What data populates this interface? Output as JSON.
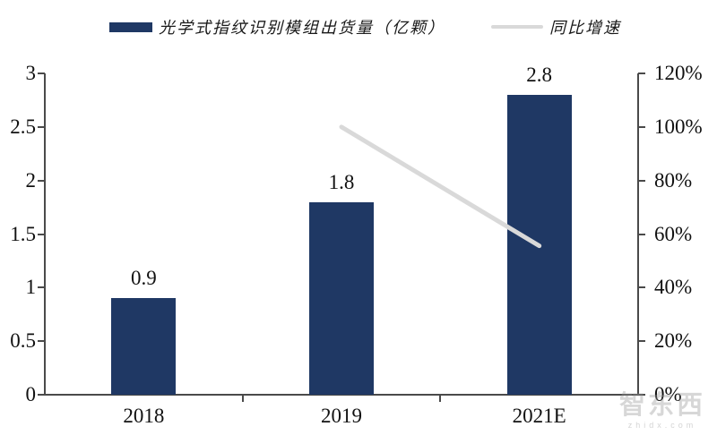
{
  "legend": {
    "items": [
      {
        "label": "光学式指纹识别模组出货量（亿颗）",
        "type": "bar-swatch",
        "color": "#1f3864"
      },
      {
        "label": "同比增速",
        "type": "line-swatch",
        "color": "#d9d9d9"
      }
    ]
  },
  "watermark": {
    "text": "智东西",
    "subtext": "zhidx.com"
  },
  "chart_data": {
    "type": "bar+line combo",
    "title": "",
    "categories": [
      "2018",
      "2019",
      "2021E"
    ],
    "series": [
      {
        "name": "光学式指纹识别模组出货量（亿颗）",
        "type": "bar",
        "axis": "left",
        "values": [
          0.9,
          1.8,
          2.8
        ],
        "labels": [
          "0.9",
          "1.8",
          "2.8"
        ],
        "color": "#1f3864"
      },
      {
        "name": "同比增速",
        "type": "line",
        "axis": "right",
        "values": [
          null,
          1.0,
          0.556
        ],
        "color": "#d9d9d9"
      }
    ],
    "left_axis": {
      "min": 0,
      "max": 3,
      "ticks": [
        "3",
        "2.5",
        "2",
        "1.5",
        "1",
        "0.5",
        "0"
      ]
    },
    "right_axis": {
      "min": 0,
      "max": 1.2,
      "ticks": [
        "120%",
        "100%",
        "80%",
        "60%",
        "40%",
        "20%",
        "0%"
      ]
    },
    "grid": false,
    "legend_position": "top",
    "axis_color": "#4a4a4a"
  }
}
